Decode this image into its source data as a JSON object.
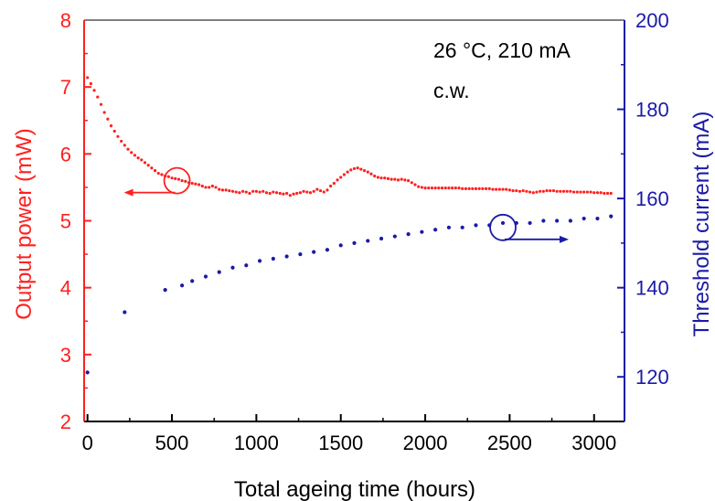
{
  "chart_data": {
    "type": "scatter",
    "xlabel": "Total ageing time (hours)",
    "y1label": "Output power (mW)",
    "y2label": "Threshold current (mA)",
    "xlim": [
      -20,
      3180
    ],
    "y1lim": [
      2,
      8
    ],
    "y2lim": [
      110,
      200
    ],
    "x_ticks": [
      "0",
      "500",
      "1000",
      "1500",
      "2000",
      "2500",
      "3000"
    ],
    "y1_ticks": [
      "2",
      "3",
      "4",
      "5",
      "6",
      "7",
      "8"
    ],
    "y2_ticks": [
      "120",
      "140",
      "160",
      "180",
      "200"
    ],
    "annotation_line1": "26 °C, 210 mA",
    "annotation_line2": "c.w.",
    "colors": {
      "power": "#ff2020",
      "threshold": "#1a1aa8",
      "frame": "#000000",
      "top_border": "#808080"
    },
    "series": [
      {
        "axis": "left",
        "points": [
          [
            0,
            7.14
          ],
          [
            20,
            7.05
          ],
          [
            40,
            6.95
          ],
          [
            60,
            6.85
          ],
          [
            80,
            6.74
          ],
          [
            100,
            6.62
          ],
          [
            120,
            6.52
          ],
          [
            140,
            6.42
          ],
          [
            160,
            6.34
          ],
          [
            180,
            6.26
          ],
          [
            200,
            6.19
          ],
          [
            220,
            6.13
          ],
          [
            240,
            6.07
          ],
          [
            260,
            6.02
          ],
          [
            280,
            5.98
          ],
          [
            300,
            5.94
          ],
          [
            320,
            5.91
          ],
          [
            340,
            5.87
          ],
          [
            360,
            5.83
          ],
          [
            380,
            5.79
          ],
          [
            400,
            5.75
          ],
          [
            420,
            5.71
          ],
          [
            440,
            5.69
          ],
          [
            460,
            5.67
          ],
          [
            480,
            5.66
          ],
          [
            500,
            5.64
          ],
          [
            520,
            5.63
          ],
          [
            540,
            5.62
          ],
          [
            560,
            5.6
          ],
          [
            580,
            5.59
          ],
          [
            600,
            5.57
          ],
          [
            620,
            5.56
          ],
          [
            640,
            5.55
          ],
          [
            660,
            5.54
          ],
          [
            680,
            5.52
          ],
          [
            700,
            5.5
          ],
          [
            720,
            5.5
          ],
          [
            740,
            5.52
          ],
          [
            760,
            5.5
          ],
          [
            780,
            5.47
          ],
          [
            800,
            5.46
          ],
          [
            820,
            5.46
          ],
          [
            840,
            5.45
          ],
          [
            860,
            5.44
          ],
          [
            880,
            5.43
          ],
          [
            900,
            5.42
          ],
          [
            920,
            5.44
          ],
          [
            940,
            5.43
          ],
          [
            960,
            5.41
          ],
          [
            980,
            5.44
          ],
          [
            1000,
            5.44
          ],
          [
            1020,
            5.43
          ],
          [
            1040,
            5.44
          ],
          [
            1060,
            5.42
          ],
          [
            1080,
            5.41
          ],
          [
            1100,
            5.43
          ],
          [
            1120,
            5.42
          ],
          [
            1140,
            5.41
          ],
          [
            1160,
            5.4
          ],
          [
            1180,
            5.41
          ],
          [
            1200,
            5.38
          ],
          [
            1220,
            5.4
          ],
          [
            1240,
            5.41
          ],
          [
            1260,
            5.42
          ],
          [
            1280,
            5.44
          ],
          [
            1300,
            5.43
          ],
          [
            1320,
            5.42
          ],
          [
            1340,
            5.44
          ],
          [
            1360,
            5.47
          ],
          [
            1380,
            5.45
          ],
          [
            1400,
            5.43
          ],
          [
            1420,
            5.46
          ],
          [
            1440,
            5.52
          ],
          [
            1460,
            5.56
          ],
          [
            1480,
            5.61
          ],
          [
            1500,
            5.65
          ],
          [
            1520,
            5.69
          ],
          [
            1540,
            5.73
          ],
          [
            1560,
            5.76
          ],
          [
            1580,
            5.78
          ],
          [
            1600,
            5.79
          ],
          [
            1620,
            5.77
          ],
          [
            1640,
            5.75
          ],
          [
            1660,
            5.73
          ],
          [
            1680,
            5.7
          ],
          [
            1700,
            5.67
          ],
          [
            1720,
            5.65
          ],
          [
            1740,
            5.64
          ],
          [
            1760,
            5.64
          ],
          [
            1780,
            5.63
          ],
          [
            1800,
            5.62
          ],
          [
            1820,
            5.62
          ],
          [
            1840,
            5.61
          ],
          [
            1860,
            5.62
          ],
          [
            1880,
            5.61
          ],
          [
            1900,
            5.6
          ],
          [
            1920,
            5.57
          ],
          [
            1940,
            5.54
          ],
          [
            1960,
            5.51
          ],
          [
            1980,
            5.5
          ],
          [
            2000,
            5.49
          ],
          [
            2020,
            5.49
          ],
          [
            2040,
            5.49
          ],
          [
            2060,
            5.49
          ],
          [
            2080,
            5.49
          ],
          [
            2100,
            5.49
          ],
          [
            2120,
            5.49
          ],
          [
            2140,
            5.49
          ],
          [
            2160,
            5.49
          ],
          [
            2180,
            5.49
          ],
          [
            2200,
            5.49
          ],
          [
            2220,
            5.48
          ],
          [
            2240,
            5.48
          ],
          [
            2260,
            5.48
          ],
          [
            2280,
            5.48
          ],
          [
            2300,
            5.48
          ],
          [
            2320,
            5.48
          ],
          [
            2340,
            5.48
          ],
          [
            2360,
            5.48
          ],
          [
            2380,
            5.48
          ],
          [
            2400,
            5.47
          ],
          [
            2420,
            5.47
          ],
          [
            2440,
            5.47
          ],
          [
            2460,
            5.47
          ],
          [
            2480,
            5.47
          ],
          [
            2500,
            5.46
          ],
          [
            2520,
            5.45
          ],
          [
            2540,
            5.45
          ],
          [
            2560,
            5.44
          ],
          [
            2580,
            5.45
          ],
          [
            2600,
            5.44
          ],
          [
            2620,
            5.43
          ],
          [
            2640,
            5.42
          ],
          [
            2660,
            5.43
          ],
          [
            2680,
            5.44
          ],
          [
            2700,
            5.44
          ],
          [
            2720,
            5.45
          ],
          [
            2740,
            5.45
          ],
          [
            2760,
            5.45
          ],
          [
            2780,
            5.44
          ],
          [
            2800,
            5.44
          ],
          [
            2820,
            5.44
          ],
          [
            2840,
            5.44
          ],
          [
            2860,
            5.44
          ],
          [
            2880,
            5.43
          ],
          [
            2900,
            5.43
          ],
          [
            2920,
            5.43
          ],
          [
            2940,
            5.43
          ],
          [
            2960,
            5.43
          ],
          [
            2980,
            5.43
          ],
          [
            3000,
            5.42
          ],
          [
            3020,
            5.42
          ],
          [
            3040,
            5.42
          ],
          [
            3060,
            5.41
          ],
          [
            3080,
            5.41
          ],
          [
            3100,
            5.41
          ]
        ]
      },
      {
        "axis": "right",
        "points": [
          [
            0,
            121
          ],
          [
            220,
            134.5
          ],
          [
            460,
            139.5
          ],
          [
            560,
            140.5
          ],
          [
            620,
            141.5
          ],
          [
            700,
            142.5
          ],
          [
            780,
            143.5
          ],
          [
            860,
            144.5
          ],
          [
            940,
            145
          ],
          [
            1020,
            146
          ],
          [
            1100,
            146.5
          ],
          [
            1180,
            147
          ],
          [
            1260,
            147.5
          ],
          [
            1340,
            148
          ],
          [
            1420,
            148.5
          ],
          [
            1500,
            149.5
          ],
          [
            1580,
            150
          ],
          [
            1660,
            150.5
          ],
          [
            1740,
            151
          ],
          [
            1820,
            151.5
          ],
          [
            1900,
            152
          ],
          [
            1980,
            152.5
          ],
          [
            2060,
            153
          ],
          [
            2140,
            153.5
          ],
          [
            2220,
            153.5
          ],
          [
            2300,
            154
          ],
          [
            2380,
            154
          ],
          [
            2460,
            154.5
          ],
          [
            2540,
            154.5
          ],
          [
            2620,
            154.5
          ],
          [
            2700,
            155
          ],
          [
            2780,
            155
          ],
          [
            2860,
            155
          ],
          [
            2940,
            155.5
          ],
          [
            3020,
            155.5
          ],
          [
            3100,
            156
          ]
        ]
      }
    ],
    "markers": [
      {
        "axis": "left",
        "x": 530,
        "y": 5.6,
        "arrow": "left"
      },
      {
        "axis": "right",
        "x": 2460,
        "y": 153.5,
        "arrow": "right"
      }
    ]
  }
}
